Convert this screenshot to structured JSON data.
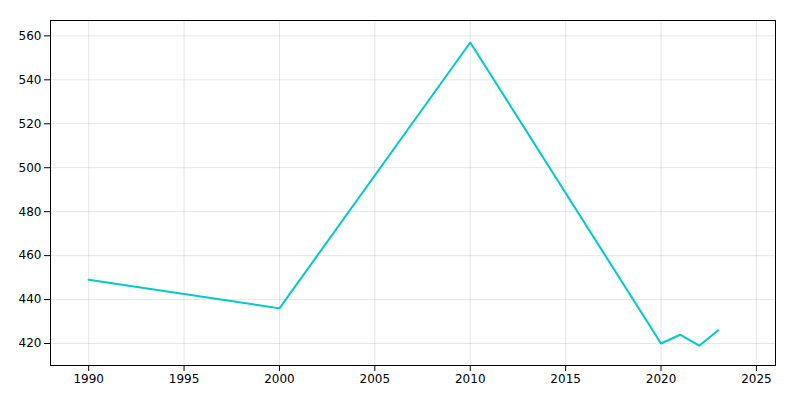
{
  "chart_data": {
    "type": "line",
    "x": [
      1990,
      2000,
      2010,
      2020,
      2021,
      2022,
      2023
    ],
    "values": [
      449,
      436,
      557,
      420,
      424,
      419,
      426
    ],
    "color": "#00C9C8",
    "xlim": [
      1988,
      2026
    ],
    "ylim": [
      410,
      567
    ],
    "xticks": [
      1990,
      1995,
      2000,
      2005,
      2010,
      2015,
      2020,
      2025
    ],
    "yticks": [
      420,
      440,
      460,
      480,
      500,
      520,
      540,
      560
    ],
    "grid": true
  }
}
